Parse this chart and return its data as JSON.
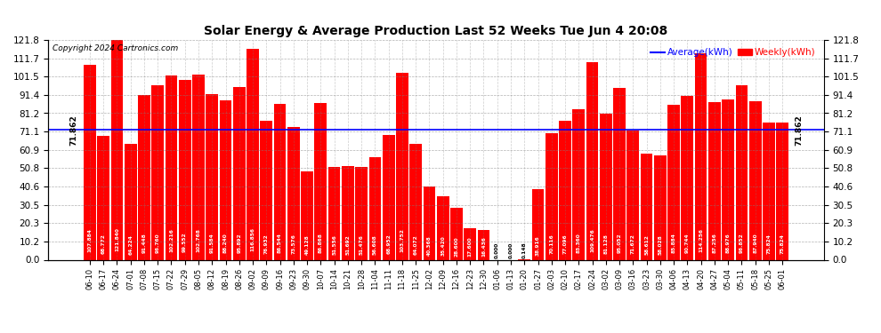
{
  "title": "Solar Energy & Average Production Last 52 Weeks Tue Jun 4 20:08",
  "copyright": "Copyright 2024 Cartronics.com",
  "average_value": 71.862,
  "average_label": "Average(kWh)",
  "weekly_label": "Weekly(kWh)",
  "bar_color": "#ff0000",
  "average_line_color": "#0000ff",
  "background_color": "#ffffff",
  "yticks": [
    0.0,
    10.2,
    20.3,
    30.5,
    40.6,
    50.8,
    60.9,
    71.1,
    81.2,
    91.4,
    101.5,
    111.7,
    121.8
  ],
  "categories": [
    "06-10",
    "06-17",
    "06-24",
    "07-01",
    "07-08",
    "07-15",
    "07-22",
    "07-29",
    "08-05",
    "08-12",
    "08-19",
    "08-26",
    "09-02",
    "09-09",
    "09-16",
    "09-23",
    "09-30",
    "10-07",
    "10-14",
    "10-21",
    "10-28",
    "11-04",
    "11-11",
    "11-18",
    "11-25",
    "12-02",
    "12-09",
    "12-16",
    "12-23",
    "12-30",
    "01-06",
    "01-13",
    "01-20",
    "01-27",
    "02-03",
    "02-10",
    "02-17",
    "02-24",
    "03-02",
    "03-09",
    "03-16",
    "03-23",
    "03-30",
    "04-06",
    "04-13",
    "04-20",
    "04-27",
    "05-04",
    "05-11",
    "05-18",
    "05-25",
    "06-01"
  ],
  "values": [
    107.884,
    68.772,
    121.84,
    64.224,
    91.448,
    96.76,
    102.216,
    99.552,
    102.768,
    91.584,
    88.24,
    95.892,
    116.856,
    76.932,
    86.544,
    73.576,
    49.128,
    86.868,
    51.556,
    51.692,
    51.476,
    56.608,
    68.952,
    103.752,
    64.072,
    40.368,
    35.42,
    28.6,
    17.6,
    16.436,
    0.0,
    0.0,
    0.148,
    38.916,
    70.116,
    77.096,
    83.36,
    109.476,
    81.128,
    95.052,
    71.672,
    58.612,
    58.028,
    85.884,
    90.744,
    114.256,
    87.256,
    88.976,
    96.852,
    87.94,
    75.824,
    75.824
  ],
  "figsize": [
    9.9,
    3.75
  ],
  "dpi": 100
}
